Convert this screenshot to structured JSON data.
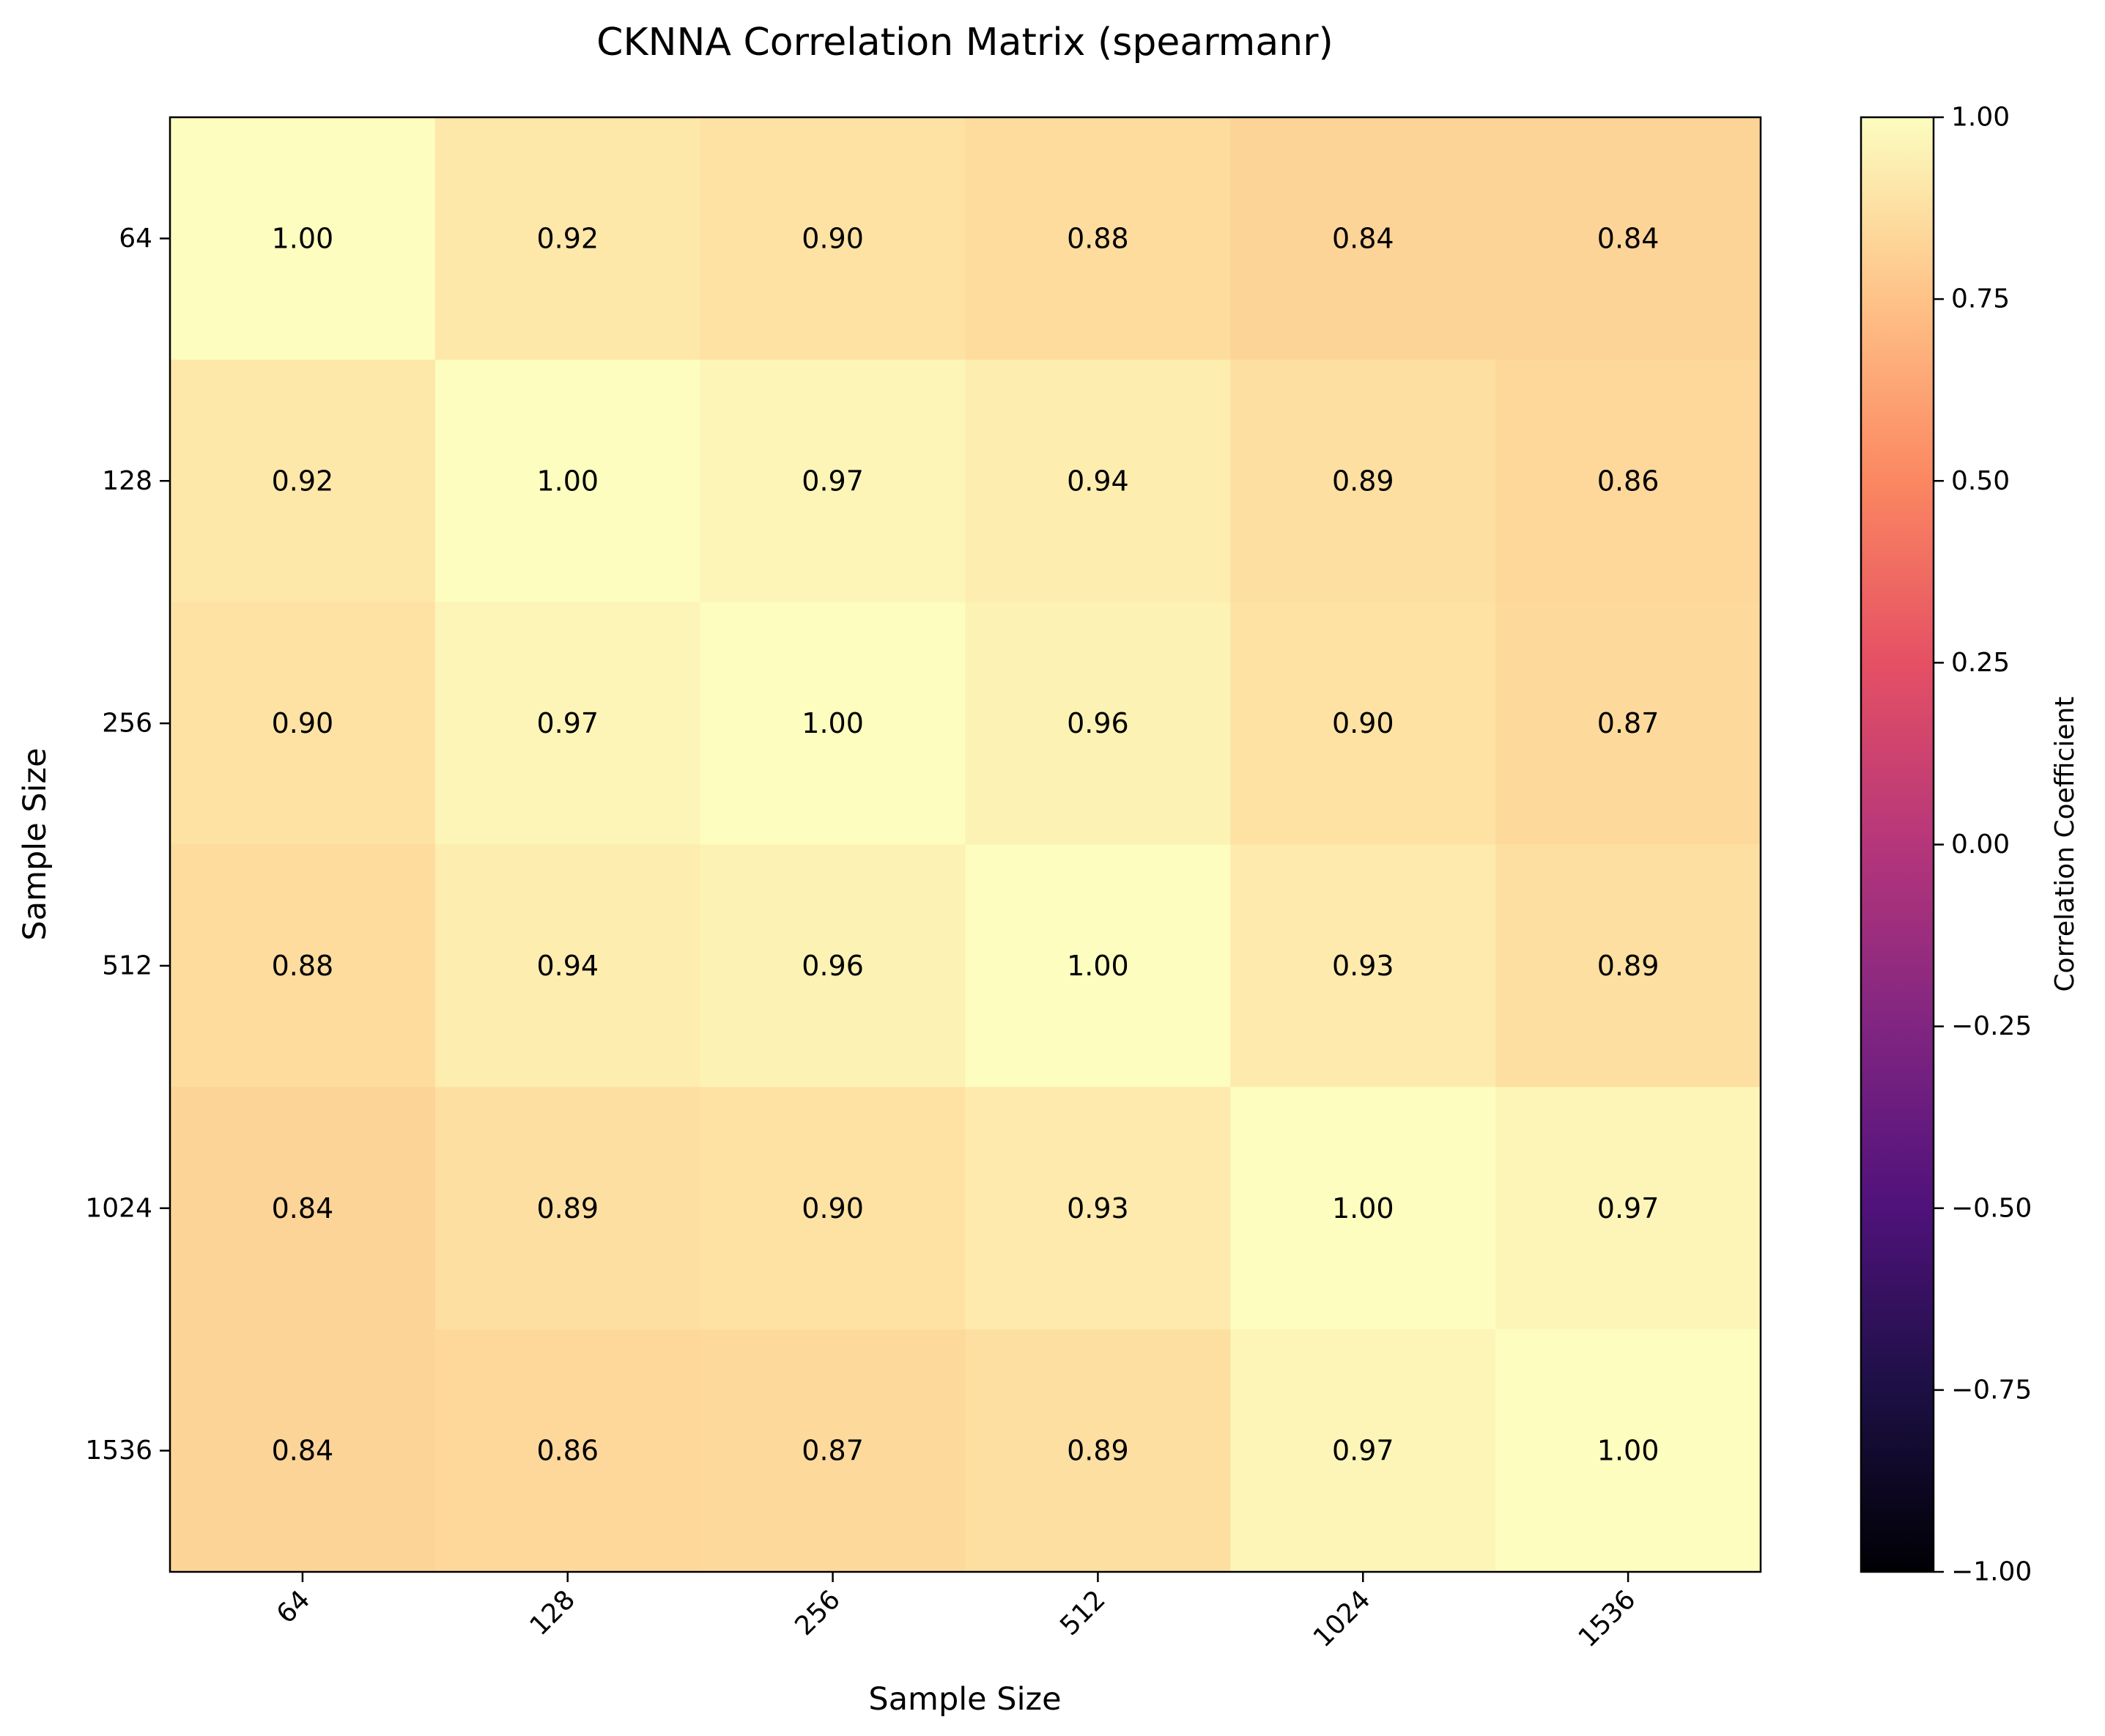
{
  "chart_data": {
    "type": "heatmap",
    "title": "CKNNA Correlation Matrix (spearmanr)",
    "xlabel": "Sample Size",
    "ylabel": "Sample Size",
    "x_categories": [
      "64",
      "128",
      "256",
      "512",
      "1024",
      "1536"
    ],
    "y_categories": [
      "64",
      "128",
      "256",
      "512",
      "1024",
      "1536"
    ],
    "values": [
      [
        1.0,
        0.92,
        0.9,
        0.88,
        0.84,
        0.84
      ],
      [
        0.92,
        1.0,
        0.97,
        0.94,
        0.89,
        0.86
      ],
      [
        0.9,
        0.97,
        1.0,
        0.96,
        0.9,
        0.87
      ],
      [
        0.88,
        0.94,
        0.96,
        1.0,
        0.93,
        0.89
      ],
      [
        0.84,
        0.89,
        0.9,
        0.93,
        1.0,
        0.97
      ],
      [
        0.84,
        0.86,
        0.87,
        0.89,
        0.97,
        1.0
      ]
    ],
    "value_format": "2 decimals",
    "colormap": "magma",
    "vmin": -1.0,
    "vmax": 1.0,
    "colorbar": {
      "label": "Correlation Coefficient",
      "ticks": [
        -1.0,
        -0.75,
        -0.5,
        -0.25,
        0.0,
        0.25,
        0.5,
        0.75,
        1.0
      ],
      "tick_labels": [
        "−1.00",
        "−0.75",
        "−0.50",
        "−0.25",
        "0.00",
        "0.25",
        "0.50",
        "0.75",
        "1.00"
      ],
      "placement": "right"
    },
    "x_tick_rotation": "45 degrees",
    "grid": false
  }
}
